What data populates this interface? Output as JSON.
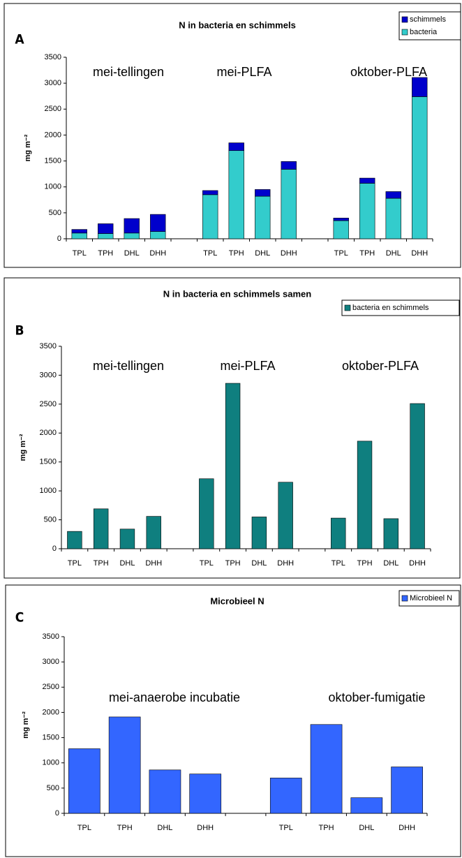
{
  "chart_data": [
    {
      "type": "bar",
      "label": "A",
      "title": "N in bacteria en schimmels",
      "stacked": true,
      "legend": "upper right",
      "y_label": "mg m⁻²",
      "categories": [
        "TPL",
        "TPH",
        "DHL",
        "DHH",
        null,
        "TPL",
        "TPH",
        "DHL",
        "DHH",
        null,
        "TPL",
        "TPH",
        "DHL",
        "DHH"
      ],
      "series": [
        {
          "name": "bacteria",
          "color": "#33cccc",
          "values": [
            110,
            100,
            110,
            140,
            null,
            850,
            1700,
            820,
            1340,
            null,
            350,
            1070,
            780,
            2740
          ]
        },
        {
          "name": "schimmels",
          "color": "#0000cc",
          "values": [
            70,
            190,
            280,
            330,
            null,
            80,
            150,
            130,
            150,
            null,
            50,
            100,
            130,
            370
          ]
        }
      ],
      "annotations": [
        "mei-tellingen",
        "mei-PLFA",
        "oktober-PLFA"
      ],
      "ylim": [
        0,
        3500
      ],
      "yticks": [
        0,
        500,
        1000,
        1500,
        2000,
        2500,
        3000,
        3500
      ]
    },
    {
      "type": "bar",
      "label": "B",
      "title": "N in bacteria en schimmels samen",
      "legend": "upper right",
      "y_label": "mg m⁻²",
      "categories": [
        "TPL",
        "TPH",
        "DHL",
        "DHH",
        null,
        "TPL",
        "TPH",
        "DHL",
        "DHH",
        null,
        "TPL",
        "TPH",
        "DHL",
        "DHH"
      ],
      "series": [
        {
          "name": "bacteria en schimmels",
          "color": "#0f7f7f",
          "values": [
            300,
            690,
            340,
            560,
            null,
            1210,
            2860,
            550,
            1150,
            null,
            530,
            1860,
            520,
            2510
          ]
        }
      ],
      "annotations": [
        "mei-tellingen",
        "mei-PLFA",
        "oktober-PLFA"
      ],
      "ylim": [
        0,
        3500
      ],
      "yticks": [
        0,
        500,
        1000,
        1500,
        2000,
        2500,
        3000,
        3500
      ]
    },
    {
      "type": "bar",
      "label": "C",
      "title": "Microbieel N",
      "legend": "upper right",
      "y_label": "mg m⁻²",
      "categories": [
        "TPL",
        "TPH",
        "DHL",
        "DHH",
        null,
        "TPL",
        "TPH",
        "DHL",
        "DHH"
      ],
      "series": [
        {
          "name": "Microbieel N",
          "color": "#3366ff",
          "values": [
            1280,
            1910,
            860,
            780,
            null,
            700,
            1760,
            310,
            920
          ]
        }
      ],
      "annotations": [
        "mei-anaerobe incubatie",
        "oktober-fumigatie"
      ],
      "ylim": [
        0,
        3500
      ],
      "yticks": [
        0,
        500,
        1000,
        1500,
        2000,
        2500,
        3000,
        3500
      ]
    }
  ]
}
